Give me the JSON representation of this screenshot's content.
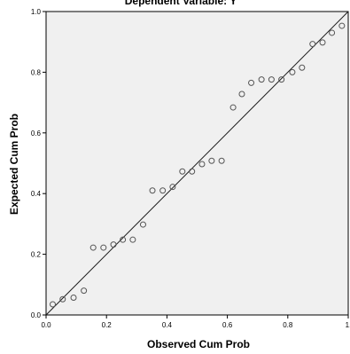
{
  "chart_data": {
    "type": "scatter",
    "title": "Dependent Variable: Y",
    "xlabel": "Observed Cum Prob",
    "ylabel": "Expected Cum Prob",
    "xlim": [
      0,
      1
    ],
    "ylim": [
      0,
      1
    ],
    "x_ticks": [
      "0.0",
      "0.2",
      "0.4",
      "0.6",
      "0.8",
      "1."
    ],
    "y_ticks": [
      "0.0",
      "0.2",
      "0.4",
      "0.6",
      "0.8",
      "1.0"
    ],
    "grid": false,
    "reference_line": {
      "from": [
        0,
        0
      ],
      "to": [
        1,
        1
      ]
    },
    "series": [
      {
        "points": [
          [
            0.022,
            0.035
          ],
          [
            0.055,
            0.052
          ],
          [
            0.091,
            0.057
          ],
          [
            0.125,
            0.08
          ],
          [
            0.156,
            0.222
          ],
          [
            0.19,
            0.222
          ],
          [
            0.223,
            0.232
          ],
          [
            0.254,
            0.248
          ],
          [
            0.287,
            0.248
          ],
          [
            0.321,
            0.298
          ],
          [
            0.352,
            0.41
          ],
          [
            0.386,
            0.41
          ],
          [
            0.419,
            0.422
          ],
          [
            0.451,
            0.473
          ],
          [
            0.483,
            0.473
          ],
          [
            0.516,
            0.497
          ],
          [
            0.548,
            0.508
          ],
          [
            0.581,
            0.508
          ],
          [
            0.619,
            0.684
          ],
          [
            0.648,
            0.728
          ],
          [
            0.679,
            0.765
          ],
          [
            0.713,
            0.776
          ],
          [
            0.746,
            0.776
          ],
          [
            0.779,
            0.776
          ],
          [
            0.815,
            0.8
          ],
          [
            0.847,
            0.815
          ],
          [
            0.882,
            0.893
          ],
          [
            0.915,
            0.898
          ],
          [
            0.946,
            0.93
          ],
          [
            0.979,
            0.953
          ]
        ],
        "marker_color": "#555555"
      }
    ],
    "colors": {
      "plot_background": "#f0f0f0",
      "line": "#1a1a1a",
      "axis": "#000000"
    }
  }
}
